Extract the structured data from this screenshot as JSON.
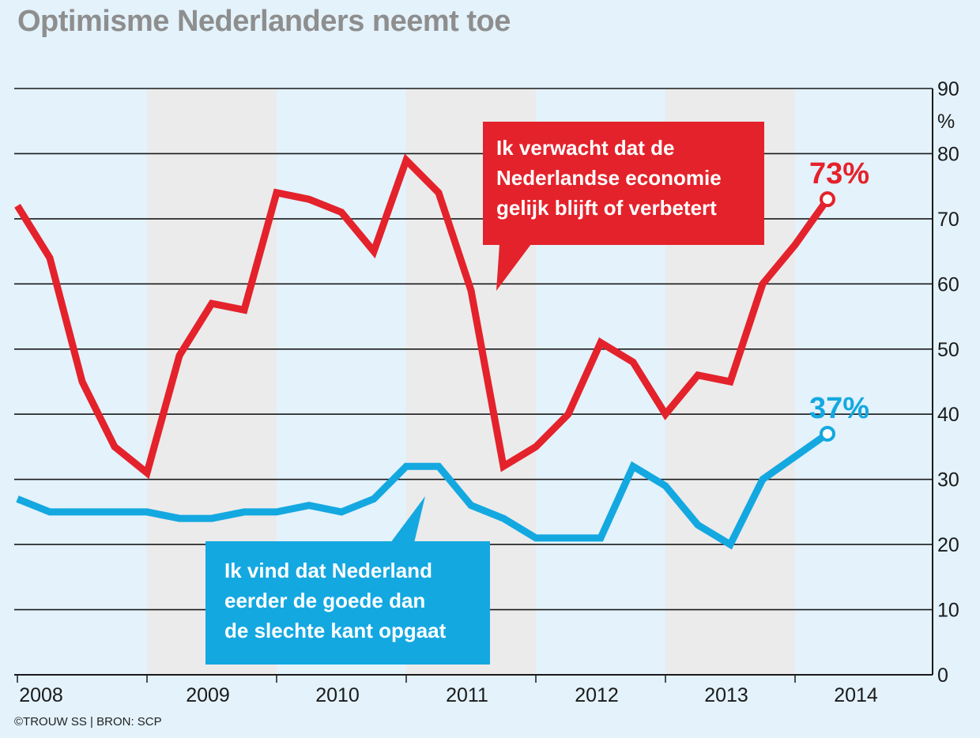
{
  "title": "Optimisme Nederlanders neemt toe",
  "credit": "©TROUW SS | BRON: SCP",
  "colors": {
    "background": "#e3f2fb",
    "band": "#ebebeb",
    "red": "#e4222b",
    "blue": "#14a8e1",
    "grid": "#1a1a1a"
  },
  "chart_data": {
    "type": "line",
    "title": "Optimisme Nederlanders neemt toe",
    "xlabel": "",
    "ylabel": "%",
    "xlim": [
      2008,
      2014.75
    ],
    "ylim": [
      0,
      90
    ],
    "yticks": [
      0,
      10,
      20,
      30,
      40,
      50,
      60,
      70,
      80,
      90
    ],
    "ytick_labels": [
      "0",
      "10",
      "20",
      "30",
      "40",
      "50",
      "60",
      "70",
      "80",
      "90"
    ],
    "y_unit_label": "%",
    "xticks": [
      2008,
      2009,
      2010,
      2011,
      2012,
      2013,
      2014
    ],
    "xtick_labels": [
      "2008",
      "2009",
      "2010",
      "2011",
      "2012",
      "2013",
      "2014"
    ],
    "grid": true,
    "alternating_year_bands": true,
    "series": [
      {
        "key": "economy",
        "color": "#e4222b",
        "points": [
          [
            2008.0,
            72
          ],
          [
            2008.25,
            64
          ],
          [
            2008.5,
            45
          ],
          [
            2008.75,
            35
          ],
          [
            2009.0,
            31
          ],
          [
            2009.25,
            49
          ],
          [
            2009.5,
            57
          ],
          [
            2009.75,
            56
          ],
          [
            2010.0,
            74
          ],
          [
            2010.25,
            73
          ],
          [
            2010.5,
            71
          ],
          [
            2010.75,
            65
          ],
          [
            2011.0,
            79
          ],
          [
            2011.25,
            74
          ],
          [
            2011.5,
            59
          ],
          [
            2011.75,
            32
          ],
          [
            2012.0,
            35
          ],
          [
            2012.25,
            40
          ],
          [
            2012.5,
            51
          ],
          [
            2012.75,
            48
          ],
          [
            2013.0,
            40
          ],
          [
            2013.25,
            46
          ],
          [
            2013.5,
            45
          ],
          [
            2013.75,
            60
          ],
          [
            2014.0,
            66
          ],
          [
            2014.25,
            73
          ]
        ],
        "end_label": "73%",
        "callout": [
          "Ik verwacht dat de",
          "Nederlandse economie",
          "gelijk blijft of verbetert"
        ]
      },
      {
        "key": "direction",
        "color": "#14a8e1",
        "points": [
          [
            2008.0,
            27
          ],
          [
            2008.25,
            25
          ],
          [
            2008.5,
            25
          ],
          [
            2008.75,
            25
          ],
          [
            2009.0,
            25
          ],
          [
            2009.25,
            24
          ],
          [
            2009.5,
            24
          ],
          [
            2009.75,
            25
          ],
          [
            2010.0,
            25
          ],
          [
            2010.25,
            26
          ],
          [
            2010.5,
            25
          ],
          [
            2010.75,
            27
          ],
          [
            2011.0,
            32
          ],
          [
            2011.25,
            32
          ],
          [
            2011.5,
            26
          ],
          [
            2011.75,
            24
          ],
          [
            2012.0,
            21
          ],
          [
            2012.25,
            21
          ],
          [
            2012.5,
            21
          ],
          [
            2012.75,
            32
          ],
          [
            2013.0,
            29
          ],
          [
            2013.25,
            23
          ],
          [
            2013.5,
            20
          ],
          [
            2013.75,
            30
          ],
          [
            2014.0,
            33.5
          ],
          [
            2014.25,
            37
          ]
        ],
        "end_label": "37%",
        "callout": [
          "Ik vind dat Nederland",
          "eerder de goede dan",
          "de slechte kant opgaat"
        ]
      }
    ]
  }
}
